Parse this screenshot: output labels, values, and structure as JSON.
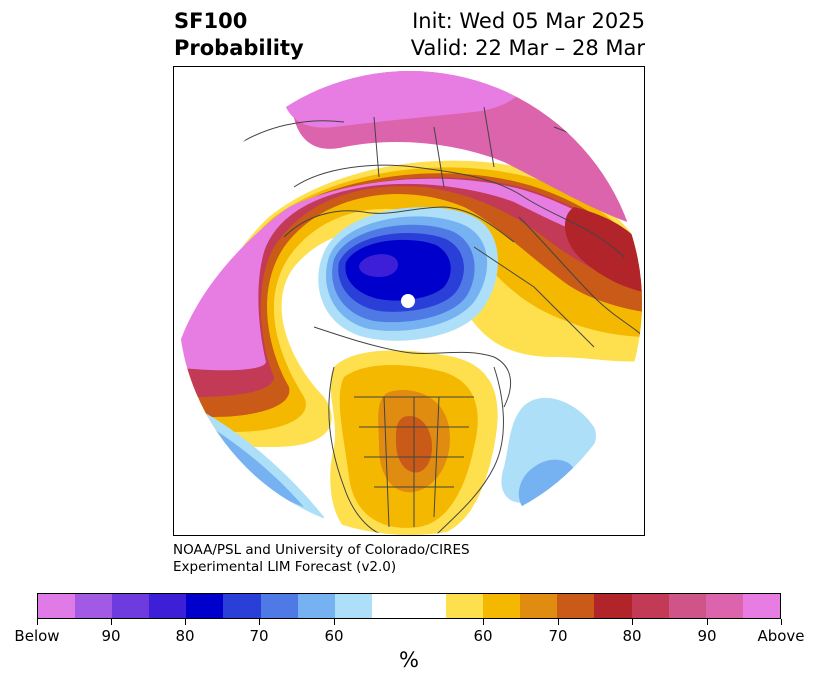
{
  "header": {
    "title_line1": "SF100",
    "title_line2": "Probability",
    "init": "Init: Wed 05 Mar 2025",
    "valid": "Valid: 22 Mar – 28 Mar"
  },
  "credit": {
    "line1": "NOAA/PSL and University of Colorado/CIRES",
    "line2": "Experimental LIM Forecast (v2.0)"
  },
  "colorbar": {
    "colors": [
      "#e07ae6",
      "#a25ae4",
      "#6e3bde",
      "#3c1fd6",
      "#0000cc",
      "#2a3ed8",
      "#4f7ae6",
      "#76b2f2",
      "#addff9",
      "#ffffff",
      "#ffffff",
      "#fee04e",
      "#f5b800",
      "#e08c10",
      "#c95a18",
      "#b0242a",
      "#c23a55",
      "#cf5487",
      "#dc64ad",
      "#e77de3"
    ],
    "tick_labels": [
      "Below",
      "90",
      "80",
      "70",
      "60",
      "60",
      "70",
      "80",
      "90",
      "Above"
    ],
    "unit": "%"
  },
  "map": {
    "projection": "polar stereographic (north pole)",
    "features": [
      "coastlines",
      "country borders",
      "US state borders"
    ],
    "colors": {
      "above_high": "#e77de3",
      "above_mid": "#c23a55",
      "above_low": "#fee04e",
      "below_high": "#0000cc",
      "below_low": "#addff9",
      "borders": "#444444"
    }
  }
}
